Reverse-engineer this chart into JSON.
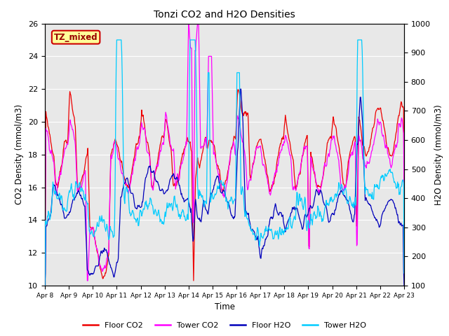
{
  "title": "Tonzi CO2 and H2O Densities",
  "xlabel": "Time",
  "ylabel_left": "CO2 Density (mmol/m3)",
  "ylabel_right": "H2O Density (mmol/m3)",
  "ylim_left": [
    10,
    26
  ],
  "ylim_right": [
    100,
    1000
  ],
  "xlim": [
    0,
    360
  ],
  "xtick_positions": [
    0,
    24,
    48,
    72,
    96,
    120,
    144,
    168,
    192,
    216,
    240,
    264,
    288,
    312,
    336,
    360
  ],
  "xtick_labels": [
    "Apr 8",
    "Apr 9",
    "Apr 10",
    "Apr 11",
    "Apr 12",
    "Apr 13",
    "Apr 14",
    "Apr 15",
    "Apr 16",
    "Apr 17",
    "Apr 18",
    "Apr 19",
    "Apr 20",
    "Apr 21",
    "Apr 22",
    "Apr 23"
  ],
  "annotation_text": "TZ_mixed",
  "annotation_facecolor": "#ffff99",
  "annotation_edgecolor": "#cc0000",
  "annotation_textcolor": "#990000",
  "floor_co2_color": "#ee0000",
  "tower_co2_color": "#ff00ff",
  "floor_h2o_color": "#0000bb",
  "tower_h2o_color": "#00ccff",
  "background_color": "#e8e8e8",
  "legend_labels": [
    "Floor CO2",
    "Tower CO2",
    "Floor H2O",
    "Tower H2O"
  ],
  "figsize": [
    6.4,
    4.8
  ],
  "dpi": 100
}
